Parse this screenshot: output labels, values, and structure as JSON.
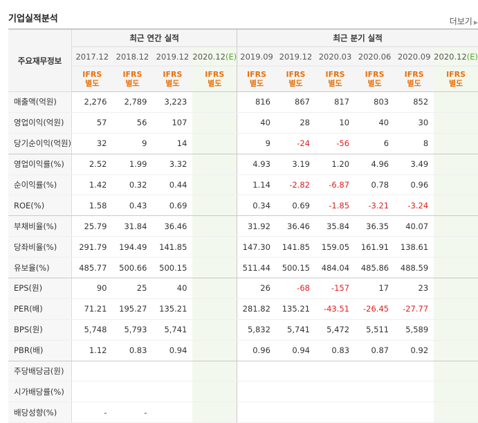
{
  "header": {
    "title": "기업실적분석",
    "more_label": "더보기"
  },
  "table": {
    "corner_label": "주요재무정보",
    "groups": {
      "annual": "최근 연간 실적",
      "quarterly": "최근 분기 실적"
    },
    "annual_periods": [
      "2017.12",
      "2018.12",
      "2019.12",
      "2020.12"
    ],
    "quarterly_periods": [
      "2019.09",
      "2019.12",
      "2020.03",
      "2020.06",
      "2020.09",
      "2020.12"
    ],
    "estimate_mark": "(E)",
    "ifrs_line1": "IFRS",
    "ifrs_line2": "별도",
    "rows": [
      {
        "label": "매출액(억원)",
        "values": [
          "2,276",
          "2,789",
          "3,223",
          "",
          "816",
          "867",
          "817",
          "803",
          "852",
          ""
        ]
      },
      {
        "label": "영업이익(억원)",
        "values": [
          "57",
          "56",
          "107",
          "",
          "40",
          "28",
          "10",
          "40",
          "30",
          ""
        ]
      },
      {
        "label": "당기순이익(억원)",
        "values": [
          "32",
          "9",
          "14",
          "",
          "9",
          "-24",
          "-56",
          "6",
          "8",
          ""
        ]
      },
      {
        "label": "영업이익률(%)",
        "values": [
          "2.52",
          "1.99",
          "3.32",
          "",
          "4.93",
          "3.19",
          "1.20",
          "4.96",
          "3.49",
          ""
        ]
      },
      {
        "label": "순이익률(%)",
        "values": [
          "1.42",
          "0.32",
          "0.44",
          "",
          "1.14",
          "-2.82",
          "-6.87",
          "0.78",
          "0.96",
          ""
        ]
      },
      {
        "label": "ROE(%)",
        "values": [
          "1.58",
          "0.43",
          "0.69",
          "",
          "0.34",
          "0.69",
          "-1.85",
          "-3.21",
          "-3.24",
          ""
        ]
      },
      {
        "label": "부채비율(%)",
        "values": [
          "25.79",
          "31.84",
          "36.46",
          "",
          "31.92",
          "36.46",
          "35.84",
          "36.35",
          "40.07",
          ""
        ]
      },
      {
        "label": "당좌비율(%)",
        "values": [
          "291.79",
          "194.49",
          "141.85",
          "",
          "147.30",
          "141.85",
          "159.05",
          "161.91",
          "138.61",
          ""
        ]
      },
      {
        "label": "유보율(%)",
        "values": [
          "485.77",
          "500.66",
          "500.15",
          "",
          "511.44",
          "500.15",
          "484.04",
          "485.86",
          "488.59",
          ""
        ]
      },
      {
        "label": "EPS(원)",
        "values": [
          "90",
          "25",
          "40",
          "",
          "26",
          "-68",
          "-157",
          "17",
          "23",
          ""
        ]
      },
      {
        "label": "PER(배)",
        "values": [
          "71.21",
          "195.27",
          "135.21",
          "",
          "281.82",
          "135.21",
          "-43.51",
          "-26.45",
          "-27.77",
          ""
        ]
      },
      {
        "label": "BPS(원)",
        "values": [
          "5,748",
          "5,793",
          "5,741",
          "",
          "5,832",
          "5,741",
          "5,472",
          "5,511",
          "5,589",
          ""
        ]
      },
      {
        "label": "PBR(배)",
        "values": [
          "1.12",
          "0.83",
          "0.94",
          "",
          "0.96",
          "0.94",
          "0.83",
          "0.87",
          "0.92",
          ""
        ]
      },
      {
        "label": "주당배당금(원)",
        "values": [
          "",
          "",
          "",
          "",
          "",
          "",
          "",
          "",
          "",
          ""
        ]
      },
      {
        "label": "시가배당률(%)",
        "values": [
          "",
          "",
          "",
          "",
          "",
          "",
          "",
          "",
          "",
          ""
        ]
      },
      {
        "label": "배당성향(%)",
        "values": [
          "-",
          "-",
          "",
          "",
          "",
          "",
          "",
          "",
          "",
          ""
        ]
      }
    ]
  }
}
